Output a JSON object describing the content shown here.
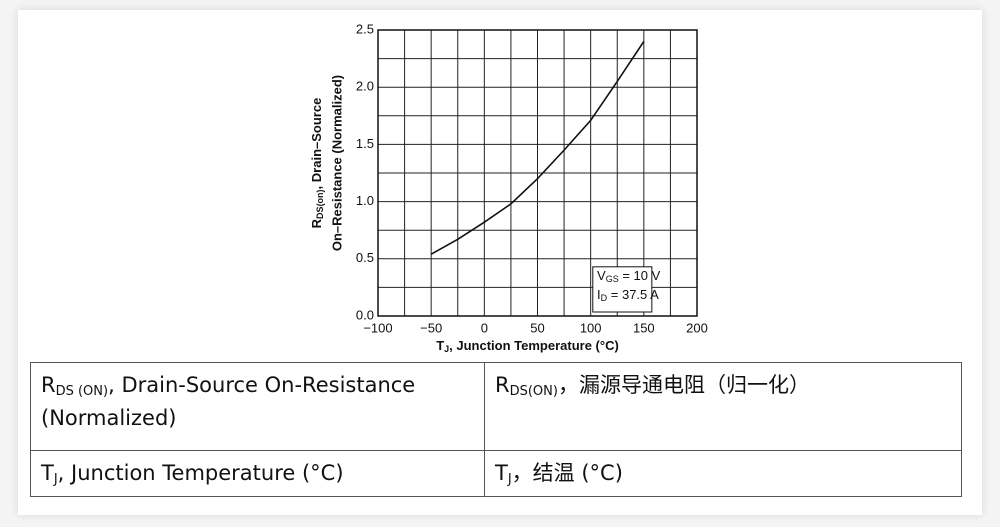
{
  "chart_data": {
    "type": "line",
    "x_label": {
      "text": "T",
      "sub": "J",
      "rest": ", Junction Temperature (°C)"
    },
    "y_label": {
      "line1": {
        "text": "R",
        "sub": "DS(on)",
        "rest": ", Drain–Source"
      },
      "line2": "On–Resistance (Normalized)"
    },
    "annotation": [
      {
        "text": "V",
        "sub": "GS",
        "rest": " = 10 V"
      },
      {
        "text": "I",
        "sub": "D",
        "rest": " = 37.5 A"
      }
    ],
    "x": [
      -50,
      -25,
      0,
      25,
      50,
      75,
      100,
      125,
      150
    ],
    "series": [
      {
        "color": "#111111",
        "values": [
          0.54,
          0.67,
          0.82,
          0.98,
          1.2,
          1.45,
          1.71,
          2.05,
          2.4
        ]
      }
    ],
    "xlim": [
      -100,
      200
    ],
    "xticks": [
      {
        "value": -100,
        "label": "−100"
      },
      {
        "value": -50,
        "label": "−50"
      },
      0,
      50,
      100,
      150,
      200
    ],
    "ylim": [
      0,
      2.5
    ],
    "yticks": [
      {
        "value": 0,
        "label": "0.0"
      },
      0.5,
      {
        "value": 1,
        "label": "1.0"
      },
      1.5,
      {
        "value": 2,
        "label": "2.0"
      },
      2.5
    ],
    "grid": "minor"
  },
  "table": {
    "rows": [
      [
        {
          "text": "R",
          "sub": "DS (ON)",
          "rest": ", Drain-Source On-Resistance (Normalized)"
        },
        {
          "text": "R",
          "sub": "DS(ON)",
          "rest": "，漏源导通电阻（归一化）"
        }
      ],
      [
        {
          "text": "T",
          "sub": "J",
          "rest": ", Junction Temperature (°C)"
        },
        {
          "text": "T",
          "sub": "J",
          "rest": "，结温 (°C)"
        }
      ]
    ]
  }
}
